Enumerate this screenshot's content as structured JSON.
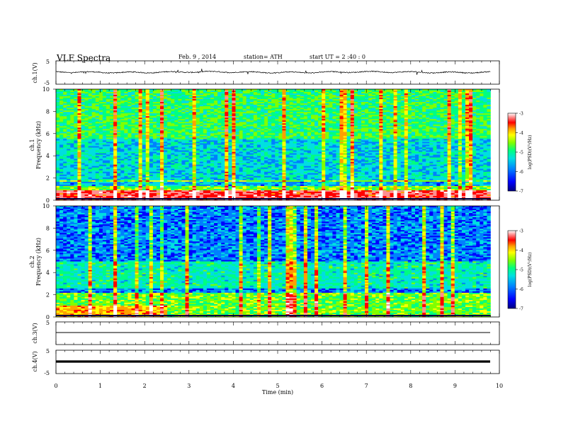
{
  "header": {
    "title": "VLF  Spectra",
    "date": "Feb. 9  , 2014",
    "station": "station= ATH",
    "start": "start  UT  =   2  :40 : 0"
  },
  "chart_data": [
    {
      "type": "line",
      "panel": "ch1-waveform",
      "ylabel": "ch.1(V)",
      "ylim": [
        -5,
        5
      ],
      "yticks": [
        "5",
        "-5"
      ],
      "series": [
        {
          "values": [
            0.1,
            0.0,
            0.2,
            -0.1,
            0.0,
            0.1,
            -0.2,
            0.0,
            0.1,
            0.0,
            -0.1,
            0.2
          ]
        }
      ]
    },
    {
      "type": "heatmap",
      "panel": "ch1-spectrogram",
      "ylabel": "ch.1\nFrequency (kHz)",
      "ylim": [
        0,
        10
      ],
      "yticks": [
        "0",
        "2",
        "4",
        "6",
        "8",
        "10"
      ],
      "colorbar": {
        "label": "log(PSD)(V²/Hz)",
        "range": [
          -7,
          -3
        ],
        "ticks": [
          "-3",
          "-4",
          "-5",
          "-6",
          "-7"
        ]
      }
    },
    {
      "type": "heatmap",
      "panel": "ch2-spectrogram",
      "ylabel": "ch.2\nFrequency (kHz)",
      "ylim": [
        0,
        10
      ],
      "yticks": [
        "0",
        "2",
        "4",
        "6",
        "8",
        "10"
      ],
      "colorbar": {
        "label": "log(PSD)(V²/Hz)",
        "range": [
          -7,
          -3
        ],
        "ticks": [
          "-3",
          "-4",
          "-5",
          "-6",
          "-7"
        ]
      }
    },
    {
      "type": "line",
      "panel": "ch3-waveform",
      "ylabel": "ch.3(V)",
      "ylim": [
        -5,
        5
      ],
      "yticks": [
        "5"
      ],
      "series": [
        {
          "values": [
            0,
            0,
            0,
            0,
            0,
            0,
            0,
            0,
            0,
            0,
            0,
            0
          ]
        }
      ]
    },
    {
      "type": "line",
      "panel": "ch4-waveform",
      "ylabel": "ch.4(V)",
      "ylim": [
        -5,
        5
      ],
      "yticks": [
        "5",
        "-5"
      ],
      "series": [
        {
          "values": [
            0,
            0,
            0,
            0,
            0,
            0,
            0,
            0,
            0,
            0,
            0,
            0
          ]
        }
      ]
    }
  ],
  "xaxis": {
    "label": "Time  (min)",
    "xlim": [
      0,
      10
    ],
    "data_end": 9.8,
    "ticks": [
      "0",
      "1",
      "2",
      "3",
      "4",
      "5",
      "6",
      "7",
      "8",
      "9",
      "10"
    ]
  },
  "colors": {
    "colormap": [
      "#000080",
      "#0000ff",
      "#0080ff",
      "#00e0e0",
      "#00ff80",
      "#80ff00",
      "#ffff00",
      "#ffa000",
      "#ff0000",
      "#ff9090",
      "#ffffff"
    ]
  }
}
